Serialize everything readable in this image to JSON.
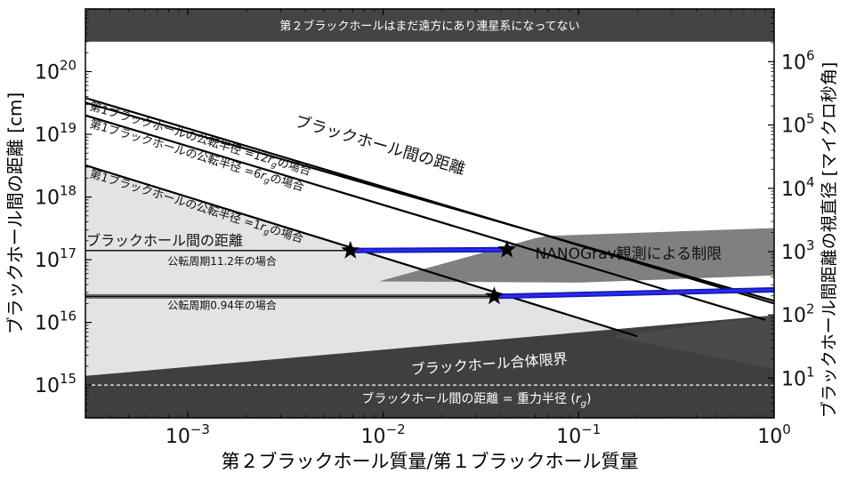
{
  "chart_data": {
    "type": "line",
    "xscale": "log",
    "yscale": "log",
    "xlim": [
      0.0003,
      1
    ],
    "ylim": [
      300000000000000.0,
      1e+21
    ],
    "y2_label_units": "マイクロ秒角",
    "xlabel": "第２ブラックホール質量/第１ブラックホール質量",
    "ylabel": "ブラックホール間の距離 [cm]",
    "y2label": "ブラックホール間距離の視直径 [マイクロ秒角]",
    "x_ticks": [
      {
        "value": 0.001,
        "base": "10",
        "exp": "−3"
      },
      {
        "value": 0.01,
        "base": "10",
        "exp": "−2"
      },
      {
        "value": 0.1,
        "base": "10",
        "exp": "−1"
      },
      {
        "value": 1,
        "base": "10",
        "exp": "0"
      }
    ],
    "y_ticks": [
      {
        "value": 1000000000000000.0,
        "base": "10",
        "exp": "15"
      },
      {
        "value": 1e+16,
        "base": "10",
        "exp": "16"
      },
      {
        "value": 1e+17,
        "base": "10",
        "exp": "17"
      },
      {
        "value": 1e+18,
        "base": "10",
        "exp": "18"
      },
      {
        "value": 1e+19,
        "base": "10",
        "exp": "19"
      },
      {
        "value": 1e+20,
        "base": "10",
        "exp": "20"
      }
    ],
    "y2_ticks": [
      {
        "value": 10,
        "base": "10",
        "exp": "1"
      },
      {
        "value": 100,
        "base": "10",
        "exp": "2"
      },
      {
        "value": 1000,
        "base": "10",
        "exp": "3"
      },
      {
        "value": 10000,
        "base": "10",
        "exp": "4"
      },
      {
        "value": 100000,
        "base": "10",
        "exp": "5"
      },
      {
        "value": 1000000,
        "base": "10",
        "exp": "6"
      }
    ],
    "regions": {
      "top_band": {
        "label": "第２ブラックホールはまだ遠方にあり連星系になってない",
        "y_from": 3e+20,
        "y_to": 1e+21,
        "color": "#444444"
      },
      "merger_limit": {
        "label": "ブラックホール合体限界",
        "color": "#3f3f3f",
        "edge": [
          {
            "x": 0.0003,
            "y": 1400000000000000.0
          },
          {
            "x": 1,
            "y": 1.3e+16
          }
        ]
      },
      "light_region": {
        "color": "#e3e3e3",
        "edge": [
          {
            "x": 0.0003,
            "y": 3e+18
          },
          {
            "x": 0.004,
            "y": 2.5e+17
          },
          {
            "x": 0.2,
            "y": 6000000000000000.0
          }
        ]
      },
      "nanograv_limit": {
        "label": "NANOGrav観測による制限",
        "color": "#808080",
        "polygon": [
          {
            "x": 0.0095,
            "y": 4.5e+16
          },
          {
            "x": 0.06,
            "y": 2.2e+17
          },
          {
            "x": 0.07,
            "y": 2.4e+17
          },
          {
            "x": 1,
            "y": 3.2e+17
          },
          {
            "x": 1,
            "y": 5.6e+16
          },
          {
            "x": 0.1,
            "y": 4.3e+16
          }
        ]
      }
    },
    "gravitational_radius": {
      "label": "ブラックホール間の距離 = 重力半径",
      "symbol": "r",
      "sub": "g",
      "value": 1000000000000000.0
    },
    "series": [
      {
        "name": "ブラックホール間の距離",
        "points": [
          {
            "x": 0.0003,
            "y": 3.2e+19
          },
          {
            "x": 1,
            "y": 2.2e+16
          }
        ]
      },
      {
        "name": "第1ブラックホールの公転半径 =12",
        "points": [
          {
            "x": 0.0003,
            "y": 3.8e+19
          },
          {
            "x": 1,
            "y": 2e+16
          }
        ]
      },
      {
        "name": "第1ブラックホールの公転半径 =6",
        "points": [
          {
            "x": 0.0003,
            "y": 2e+19
          },
          {
            "x": 0.9,
            "y": 1.1e+16
          }
        ]
      },
      {
        "name": "第1ブラックホールの公転半径 =1",
        "points": [
          {
            "x": 0.0003,
            "y": 3.2e+18
          },
          {
            "x": 0.2,
            "y": 6000000000000000.0
          }
        ]
      }
    ],
    "line_labels": [
      {
        "text": "ブラックホール間の距離",
        "suffix": "",
        "for": 0
      },
      {
        "text": "第1ブラックホールの公転半径 =12",
        "suffix": "の場合",
        "for": 1
      },
      {
        "text": "第1ブラックホールの公転半径 =6",
        "suffix": "の場合",
        "for": 2
      },
      {
        "text": "第1ブラックホールの公転半径 =1",
        "suffix": "の場合",
        "for": 3
      }
    ],
    "periods": [
      {
        "label": "公転周期11.2年の場合",
        "left_label": "ブラックホール間の距離",
        "y": 1.4e+17,
        "x_from": 0.0003,
        "x_to": 0.0068,
        "blue_segment": {
          "x_from": 0.0068,
          "x_to": 0.043,
          "y_from": 1.4e+17,
          "y_to": 1.45e+17
        }
      },
      {
        "label": "公転周期0.94年の場合",
        "left_label": "",
        "y": 2.6e+16,
        "x_from": 0.0003,
        "x_to": 0.037,
        "blue_segment": {
          "x_from": 0.037,
          "x_to": 1.0,
          "y_from": 2.6e+16,
          "y_to": 3.3e+16
        }
      }
    ],
    "stars": [
      {
        "x": 0.0068,
        "y": 1.4e+17
      },
      {
        "x": 0.043,
        "y": 1.45e+17
      },
      {
        "x": 0.037,
        "y": 2.6e+16
      }
    ]
  }
}
